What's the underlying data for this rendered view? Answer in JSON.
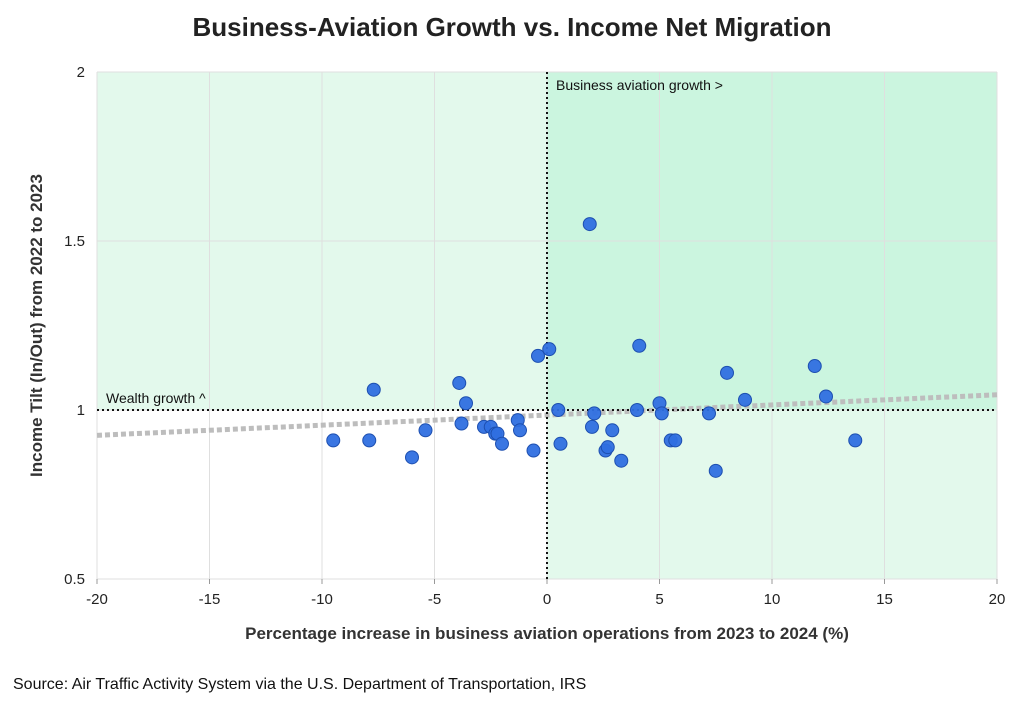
{
  "title": "Business-Aviation Growth vs. Income Net Migration",
  "source": "Source: Air Traffic Activity System via the U.S. Department of Transportation, IRS",
  "chart_data": {
    "type": "scatter",
    "title": "Business-Aviation Growth vs. Income Net Migration",
    "xlabel": "Percentage increase in business aviation operations from 2023 to 2024 (%)",
    "ylabel": "Income Tilt (In/Out) from 2022 to 2023",
    "xlim": [
      -20,
      20
    ],
    "ylim": [
      0.5,
      2
    ],
    "xticks": [
      -20,
      -15,
      -10,
      -5,
      0,
      5,
      10,
      15,
      20
    ],
    "yticks": [
      0.5,
      1,
      1.5,
      2
    ],
    "ytick_labels": [
      "0.5",
      "1",
      "1.5",
      "2"
    ],
    "grid": true,
    "reference_lines": {
      "x": 0,
      "y": 1
    },
    "annotations": {
      "wealth": "Wealth growth ^",
      "aviation": "Business aviation growth >"
    },
    "trendline": {
      "x": [
        -20,
        20
      ],
      "y": [
        0.925,
        1.045
      ]
    },
    "colors": {
      "point": "#2f6fe0",
      "point_edge": "#1d4fb0",
      "shade": "#e3f9ec",
      "shade_quadrant": "#cbf5df",
      "trend": "#bdbdbd",
      "grid": "#dfdfdf"
    },
    "points": [
      {
        "x": -9.5,
        "y": 0.91
      },
      {
        "x": -7.9,
        "y": 0.91
      },
      {
        "x": -7.7,
        "y": 1.06
      },
      {
        "x": -6.0,
        "y": 0.86
      },
      {
        "x": -5.4,
        "y": 0.94
      },
      {
        "x": -3.9,
        "y": 1.08
      },
      {
        "x": -3.8,
        "y": 0.96
      },
      {
        "x": -3.6,
        "y": 1.02
      },
      {
        "x": -2.8,
        "y": 0.95
      },
      {
        "x": -2.5,
        "y": 0.95
      },
      {
        "x": -2.3,
        "y": 0.93
      },
      {
        "x": -2.2,
        "y": 0.93
      },
      {
        "x": -2.0,
        "y": 0.9
      },
      {
        "x": -1.3,
        "y": 0.97
      },
      {
        "x": -1.2,
        "y": 0.94
      },
      {
        "x": -0.6,
        "y": 0.88
      },
      {
        "x": -0.4,
        "y": 1.16
      },
      {
        "x": 0.1,
        "y": 1.18
      },
      {
        "x": 0.5,
        "y": 1.0
      },
      {
        "x": 0.6,
        "y": 0.9
      },
      {
        "x": 1.9,
        "y": 1.55
      },
      {
        "x": 2.0,
        "y": 0.95
      },
      {
        "x": 2.1,
        "y": 0.99
      },
      {
        "x": 2.6,
        "y": 0.88
      },
      {
        "x": 2.7,
        "y": 0.89
      },
      {
        "x": 2.9,
        "y": 0.94
      },
      {
        "x": 3.3,
        "y": 0.85
      },
      {
        "x": 4.0,
        "y": 1.0
      },
      {
        "x": 4.1,
        "y": 1.19
      },
      {
        "x": 5.0,
        "y": 1.02
      },
      {
        "x": 5.1,
        "y": 0.99
      },
      {
        "x": 5.5,
        "y": 0.91
      },
      {
        "x": 5.7,
        "y": 0.91
      },
      {
        "x": 7.2,
        "y": 0.99
      },
      {
        "x": 7.5,
        "y": 0.82
      },
      {
        "x": 8.0,
        "y": 1.11
      },
      {
        "x": 8.8,
        "y": 1.03
      },
      {
        "x": 11.9,
        "y": 1.13
      },
      {
        "x": 12.4,
        "y": 1.04
      },
      {
        "x": 13.7,
        "y": 0.91
      }
    ]
  }
}
